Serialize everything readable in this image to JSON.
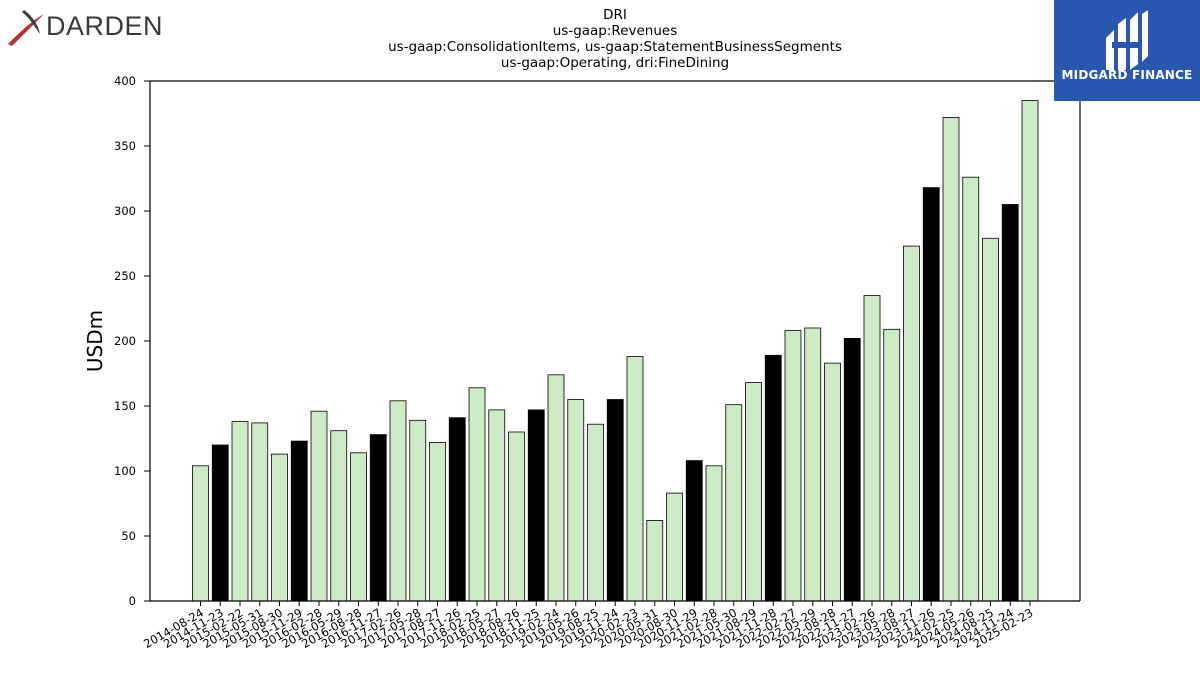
{
  "header": {
    "company_logo_text": "DARDEN",
    "brand_name": "MIDGARD FINANCE"
  },
  "colors": {
    "regular_bar": "#cdeac6",
    "highlight_bar": "#000000",
    "brand_bg": "#2a58b0",
    "logo_red": "#b5322f",
    "logo_text": "#3a3a3a"
  },
  "chart_data": {
    "type": "bar",
    "title_lines": [
      "DRI",
      "us-gaap:Revenues",
      "us-gaap:ConsolidationItems, us-gaap:StatementBusinessSegments",
      "us-gaap:Operating, dri:FineDining"
    ],
    "xlabel": "",
    "ylabel": "USDm",
    "ylim": [
      0,
      400
    ],
    "yticks": [
      0,
      50,
      100,
      150,
      200,
      250,
      300,
      350,
      400
    ],
    "grid": false,
    "categories": [
      "2014-08-24",
      "2014-11-23",
      "2015-02-22",
      "2015-05-31",
      "2015-08-30",
      "2015-11-29",
      "2016-02-28",
      "2016-05-29",
      "2016-08-28",
      "2016-11-27",
      "2017-02-26",
      "2017-05-28",
      "2017-08-27",
      "2017-11-26",
      "2018-02-25",
      "2018-05-27",
      "2018-08-26",
      "2018-11-25",
      "2019-02-24",
      "2019-05-26",
      "2019-08-25",
      "2019-11-24",
      "2020-02-23",
      "2020-05-31",
      "2020-08-30",
      "2020-11-29",
      "2021-02-28",
      "2021-05-30",
      "2021-08-29",
      "2021-11-28",
      "2022-02-27",
      "2022-05-29",
      "2022-08-28",
      "2022-11-27",
      "2023-02-26",
      "2023-05-28",
      "2023-08-27",
      "2023-11-26",
      "2024-02-25",
      "2024-05-26",
      "2024-08-25",
      "2024-11-24",
      "2025-02-23"
    ],
    "values": [
      104,
      120,
      138,
      137,
      113,
      123,
      146,
      131,
      114,
      128,
      154,
      139,
      122,
      141,
      164,
      147,
      130,
      147,
      174,
      155,
      136,
      155,
      188,
      62,
      83,
      108,
      104,
      151,
      168,
      189,
      208,
      210,
      183,
      202,
      235,
      209,
      273,
      318,
      372,
      326,
      279,
      305,
      385
    ],
    "highlighted": [
      false,
      true,
      false,
      false,
      false,
      true,
      false,
      false,
      false,
      true,
      false,
      false,
      false,
      true,
      false,
      false,
      false,
      true,
      false,
      false,
      false,
      true,
      false,
      false,
      false,
      true,
      false,
      false,
      false,
      true,
      false,
      false,
      false,
      true,
      false,
      false,
      false,
      true,
      false,
      false,
      false,
      true,
      false
    ]
  }
}
